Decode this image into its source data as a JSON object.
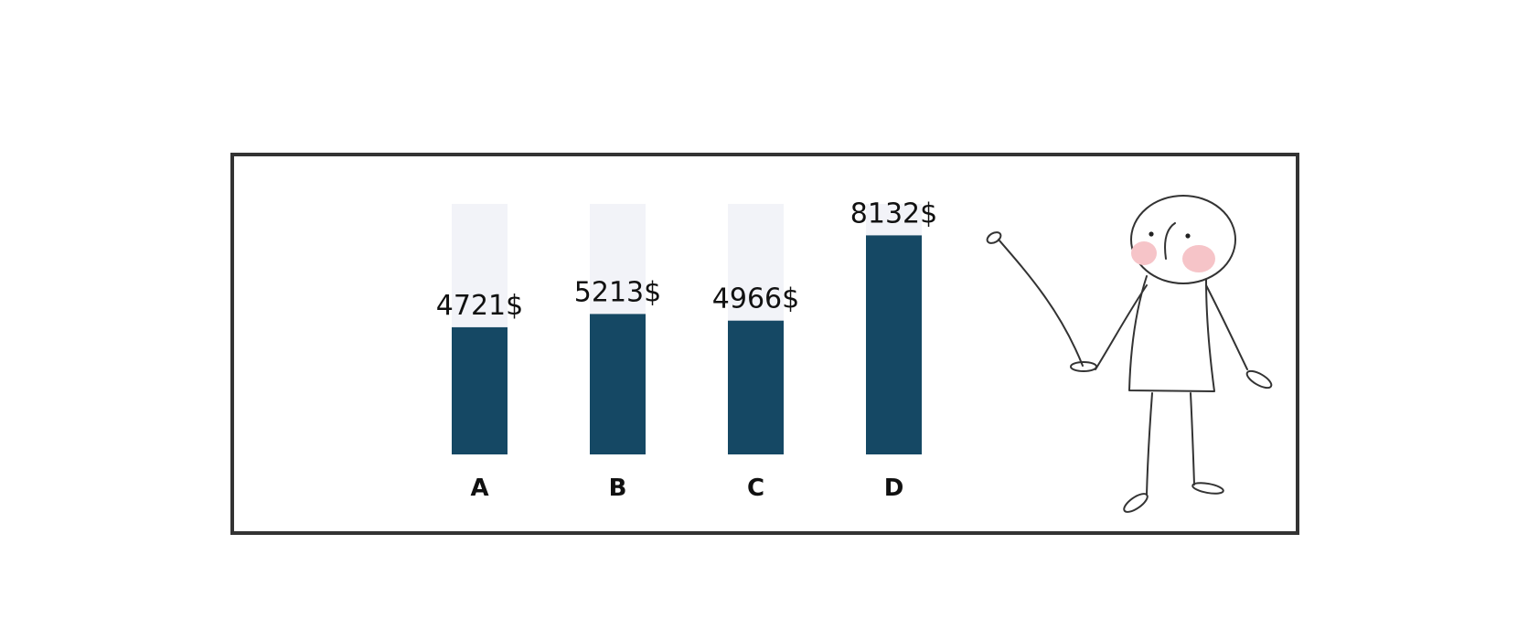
{
  "chart_data": {
    "type": "bar",
    "categories": [
      "A",
      "B",
      "C",
      "D"
    ],
    "values": [
      4721,
      5213,
      4966,
      8132
    ],
    "value_labels": [
      "4721$",
      "5213$",
      "4966$",
      "8132$"
    ],
    "ylim": [
      0,
      9300
    ],
    "grid": false,
    "legend": "none",
    "colors": {
      "bar": "#154864",
      "track": "#f2f3f8",
      "frame": "#333333",
      "cheek": "#f6c4c8"
    }
  },
  "decoration": {
    "icon": "stick-figure-presenter-icon"
  }
}
